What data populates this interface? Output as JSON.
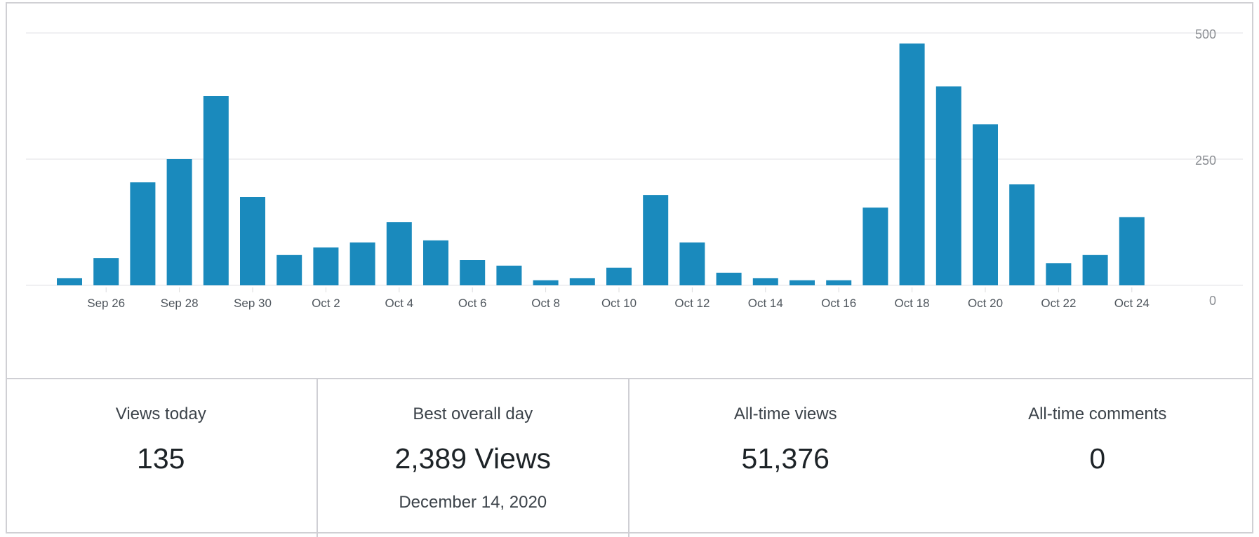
{
  "chart_data": {
    "type": "bar",
    "categories": [
      "Sep 25",
      "Sep 26",
      "Sep 27",
      "Sep 28",
      "Sep 29",
      "Sep 30",
      "Oct 1",
      "Oct 2",
      "Oct 3",
      "Oct 4",
      "Oct 5",
      "Oct 6",
      "Oct 7",
      "Oct 8",
      "Oct 9",
      "Oct 10",
      "Oct 11",
      "Oct 12",
      "Oct 13",
      "Oct 14",
      "Oct 15",
      "Oct 16",
      "Oct 17",
      "Oct 18",
      "Oct 19",
      "Oct 20",
      "Oct 21",
      "Oct 22",
      "Oct 23",
      "Oct 24"
    ],
    "x_tick_labels": [
      "Sep 26",
      "Sep 28",
      "Sep 30",
      "Oct 2",
      "Oct 4",
      "Oct 6",
      "Oct 8",
      "Oct 10",
      "Oct 12",
      "Oct 14",
      "Oct 16",
      "Oct 18",
      "Oct 20",
      "Oct 22",
      "Oct 24"
    ],
    "values": [
      14,
      54,
      204,
      250,
      375,
      175,
      60,
      75,
      85,
      125,
      89,
      50,
      39,
      10,
      14,
      35,
      179,
      85,
      25,
      14,
      10,
      10,
      154,
      479,
      394,
      319,
      200,
      44,
      60,
      135
    ],
    "y_ticks": [
      "0",
      "250",
      "500"
    ],
    "ylim": [
      0,
      500
    ],
    "y_axis_position": "right",
    "grid": true,
    "bar_color": "#1a8abd",
    "title": "",
    "xlabel": "",
    "ylabel": ""
  },
  "stats": {
    "views_today": {
      "label": "Views today",
      "value": "135"
    },
    "best_day": {
      "label": "Best overall day",
      "value": "2,389 Views",
      "date": "December 14, 2020"
    },
    "all_time_views": {
      "label": "All-time views",
      "value": "51,376"
    },
    "all_time_comments": {
      "label": "All-time comments",
      "value": "0"
    }
  }
}
